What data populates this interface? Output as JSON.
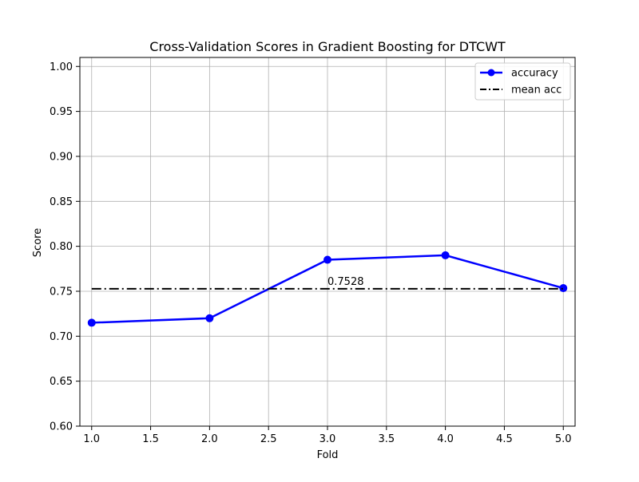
{
  "chart_data": {
    "type": "line",
    "title": "Cross-Validation Scores in Gradient Boosting for DTCWT",
    "xlabel": "Fold",
    "ylabel": "Score",
    "xlim": [
      0.9,
      5.1
    ],
    "ylim": [
      0.6,
      1.01
    ],
    "x_ticks": [
      1.0,
      1.5,
      2.0,
      2.5,
      3.0,
      3.5,
      4.0,
      4.5,
      5.0
    ],
    "x_tick_labels": [
      "1.0",
      "1.5",
      "2.0",
      "2.5",
      "3.0",
      "3.5",
      "4.0",
      "4.5",
      "5.0"
    ],
    "y_ticks": [
      0.6,
      0.65,
      0.7,
      0.75,
      0.8,
      0.85,
      0.9,
      0.95,
      1.0
    ],
    "y_tick_labels": [
      "0.60",
      "0.65",
      "0.70",
      "0.75",
      "0.80",
      "0.85",
      "0.90",
      "0.95",
      "1.00"
    ],
    "grid": true,
    "legend_position": "top-right",
    "series": [
      {
        "name": "accuracy",
        "color": "#0000ff",
        "style": "solid",
        "marker": "circle",
        "x": [
          1,
          2,
          3,
          4,
          5
        ],
        "values": [
          0.715,
          0.72,
          0.785,
          0.79,
          0.7535
        ]
      },
      {
        "name": "mean acc",
        "color": "#000000",
        "style": "dashdot",
        "marker": "none",
        "x": [
          1,
          5
        ],
        "values": [
          0.7528,
          0.7528
        ]
      }
    ],
    "annotations": [
      {
        "text": "0.7528",
        "x": 3.0,
        "y": 0.7528
      }
    ]
  }
}
